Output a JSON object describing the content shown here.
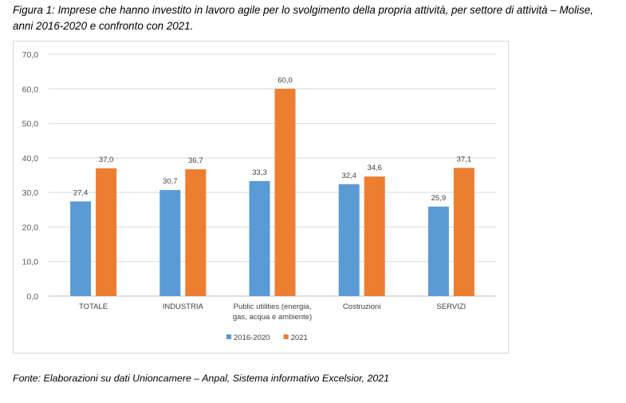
{
  "caption": {
    "line1": "Figura 1: Imprese che hanno investito in lavoro agile per lo svolgimento della propria attività, per settore di attività – Molise,",
    "line2": "anni 2016-2020 e confronto con 2021."
  },
  "source": "Fonte: Elaborazioni su dati Unioncamere – Anpal, Sistema informativo Excelsior, 2021",
  "chart_data": {
    "type": "bar",
    "categories": [
      [
        "TOTALE"
      ],
      [
        "INDUSTRIA"
      ],
      [
        "Public utilities (energia,",
        "gas, acqua e ambiente)"
      ],
      [
        "Costruzioni"
      ],
      [
        "SERVIZI"
      ]
    ],
    "series": [
      {
        "name": "2016-2020",
        "color": "#5b9bd5",
        "values": [
          27.4,
          30.7,
          33.3,
          32.4,
          25.9
        ],
        "labels": [
          "27,4",
          "30,7",
          "33,3",
          "32,4",
          "25,9"
        ]
      },
      {
        "name": "2021",
        "color": "#ed7d31",
        "values": [
          37.0,
          36.7,
          60.0,
          34.6,
          37.1
        ],
        "labels": [
          "37,0",
          "36,7",
          "60,0",
          "34,6",
          "37,1"
        ]
      }
    ],
    "ylim": [
      0,
      70
    ],
    "yticks": [
      0,
      10,
      20,
      30,
      40,
      50,
      60,
      70
    ],
    "ytick_labels": [
      "0,0",
      "10,0",
      "20,0",
      "30,0",
      "40,0",
      "50,0",
      "60,0",
      "70,0"
    ],
    "grid": true,
    "legend_position": "bottom"
  }
}
